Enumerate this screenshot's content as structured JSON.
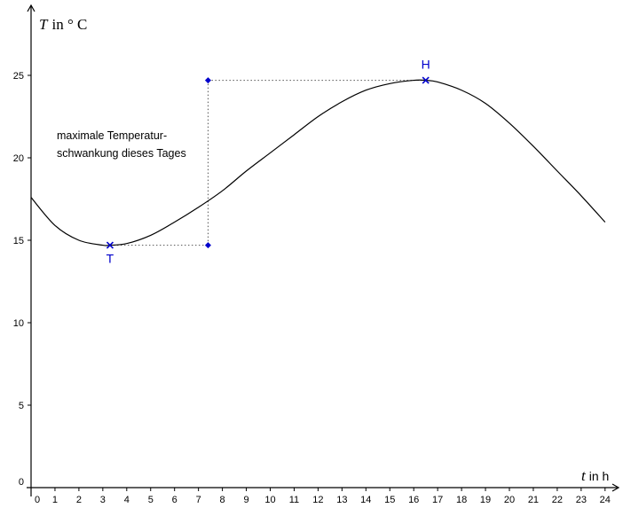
{
  "chart_data": {
    "type": "line",
    "xlabel_var": "t",
    "xlabel_unit": "in h",
    "ylabel_var": "T",
    "ylabel_unit": "in ° C",
    "xlim": [
      0,
      24
    ],
    "ylim": [
      0,
      25
    ],
    "x_ticks": [
      "0",
      "1",
      "2",
      "3",
      "4",
      "5",
      "6",
      "7",
      "8",
      "9",
      "10",
      "11",
      "12",
      "13",
      "14",
      "15",
      "16",
      "17",
      "18",
      "19",
      "20",
      "21",
      "22",
      "23",
      "24"
    ],
    "y_ticks": [
      "0",
      "5",
      "10",
      "15",
      "20",
      "25"
    ],
    "grid": false,
    "curve_points": [
      {
        "x": 0,
        "y": 17.6
      },
      {
        "x": 1,
        "y": 15.9
      },
      {
        "x": 2,
        "y": 15.0
      },
      {
        "x": 3,
        "y": 14.7
      },
      {
        "x": 3.3,
        "y": 14.7
      },
      {
        "x": 4,
        "y": 14.8
      },
      {
        "x": 5,
        "y": 15.3
      },
      {
        "x": 6,
        "y": 16.1
      },
      {
        "x": 7,
        "y": 17.0
      },
      {
        "x": 8,
        "y": 18.0
      },
      {
        "x": 9,
        "y": 19.2
      },
      {
        "x": 10,
        "y": 20.3
      },
      {
        "x": 11,
        "y": 21.4
      },
      {
        "x": 12,
        "y": 22.5
      },
      {
        "x": 13,
        "y": 23.4
      },
      {
        "x": 14,
        "y": 24.1
      },
      {
        "x": 15,
        "y": 24.5
      },
      {
        "x": 16,
        "y": 24.7
      },
      {
        "x": 16.5,
        "y": 24.7
      },
      {
        "x": 17,
        "y": 24.6
      },
      {
        "x": 18,
        "y": 24.1
      },
      {
        "x": 19,
        "y": 23.3
      },
      {
        "x": 20,
        "y": 22.1
      },
      {
        "x": 21,
        "y": 20.7
      },
      {
        "x": 22,
        "y": 19.2
      },
      {
        "x": 23,
        "y": 17.7
      },
      {
        "x": 24,
        "y": 16.1
      }
    ],
    "points": [
      {
        "label": "T",
        "x": 3.3,
        "y": 14.7
      },
      {
        "label": "H",
        "x": 16.5,
        "y": 24.7
      }
    ],
    "helper_points": [
      {
        "x": 7.4,
        "y": 24.7
      },
      {
        "x": 7.4,
        "y": 14.7
      }
    ],
    "annotation_lines": [
      "maximale Temperatur-",
      "schwankung dieses Tages"
    ]
  },
  "colors": {
    "curve": "#000000",
    "points": "#0000cc",
    "dotted": "#555555"
  }
}
